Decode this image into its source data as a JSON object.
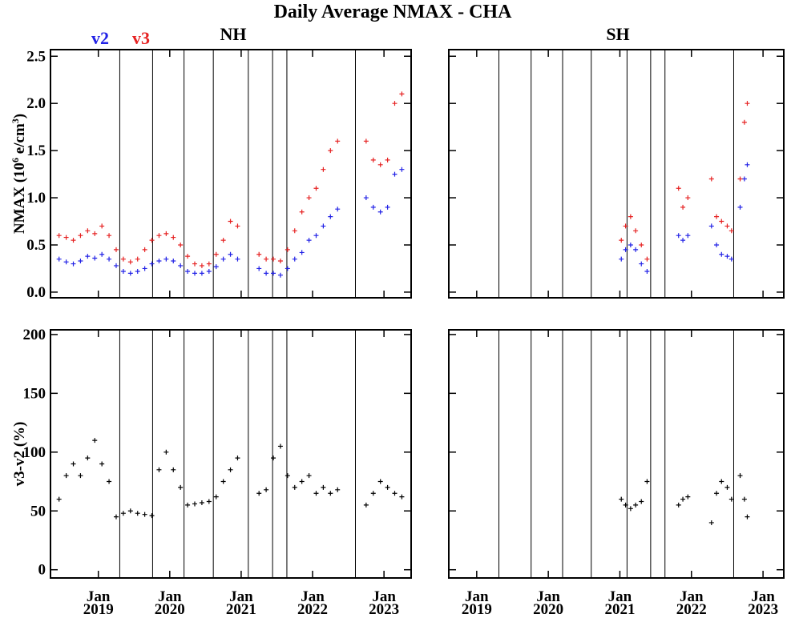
{
  "title": "Daily Average NMAX - CHA",
  "chart_data": [
    {
      "type": "scatter",
      "title": "NH",
      "ylabel": [
        "NMAX (10",
        "6",
        " e/cm",
        "3",
        ")"
      ],
      "x": [
        2018.45,
        2018.55,
        2018.65,
        2018.75,
        2018.85,
        2018.95,
        2019.05,
        2019.15,
        2019.25,
        2019.35,
        2019.45,
        2019.55,
        2019.65,
        2019.75,
        2019.85,
        2019.95,
        2020.05,
        2020.15,
        2020.25,
        2020.35,
        2020.45,
        2020.55,
        2020.65,
        2020.75,
        2020.85,
        2020.95,
        2021.25,
        2021.35,
        2021.45,
        2021.55,
        2021.65,
        2021.75,
        2021.85,
        2021.95,
        2022.05,
        2022.15,
        2022.25,
        2022.35,
        2022.75,
        2022.85,
        2022.95,
        2023.05,
        2023.15,
        2023.25
      ],
      "series": [
        {
          "name": "v2",
          "color": "#2222e6",
          "values": [
            0.35,
            0.32,
            0.3,
            0.33,
            0.38,
            0.36,
            0.4,
            0.35,
            0.28,
            0.22,
            0.2,
            0.22,
            0.25,
            0.3,
            0.33,
            0.35,
            0.33,
            0.28,
            0.22,
            0.2,
            0.2,
            0.22,
            0.27,
            0.35,
            0.4,
            0.35,
            0.25,
            0.2,
            0.2,
            0.18,
            0.25,
            0.35,
            0.42,
            0.55,
            0.6,
            0.7,
            0.8,
            0.88,
            1.0,
            0.9,
            0.85,
            0.9,
            1.25,
            1.3
          ]
        },
        {
          "name": "v3",
          "color": "#e62222",
          "values": [
            0.6,
            0.58,
            0.55,
            0.6,
            0.65,
            0.62,
            0.7,
            0.6,
            0.45,
            0.35,
            0.32,
            0.35,
            0.45,
            0.55,
            0.6,
            0.62,
            0.58,
            0.5,
            0.38,
            0.3,
            0.28,
            0.3,
            0.4,
            0.55,
            0.75,
            0.7,
            0.4,
            0.35,
            0.35,
            0.33,
            0.45,
            0.65,
            0.85,
            1.0,
            1.1,
            1.3,
            1.5,
            1.6,
            1.6,
            1.4,
            1.35,
            1.4,
            2.0,
            2.1
          ]
        }
      ],
      "xlim": [
        2018.33,
        2023.38
      ],
      "ylim": [
        -0.06,
        2.57
      ],
      "xticks": [
        2019,
        2020,
        2021,
        2022,
        2023
      ],
      "show_xtick_labels": false,
      "yticks": [
        {
          "value": 0,
          "label": "0.0"
        },
        0.5,
        {
          "value": 1,
          "label": "1.0"
        },
        1.5,
        {
          "value": 2,
          "label": "2.0"
        },
        2.5
      ],
      "show_ytick_labels": true,
      "vlines": [
        2019.3,
        2019.76,
        2020.2,
        2020.61,
        2021.1,
        2021.44,
        2021.64,
        2022.6
      ]
    },
    {
      "type": "scatter",
      "title": "SH",
      "x": [
        2021.02,
        2021.08,
        2021.15,
        2021.22,
        2021.3,
        2021.38,
        2021.82,
        2021.88,
        2021.95,
        2022.28,
        2022.35,
        2022.42,
        2022.5,
        2022.56,
        2022.68,
        2022.74,
        2022.78
      ],
      "series": [
        {
          "color": "#2222e6",
          "values": [
            0.35,
            0.45,
            0.5,
            0.45,
            0.3,
            0.22,
            0.6,
            0.55,
            0.6,
            0.7,
            0.5,
            0.4,
            0.38,
            0.35,
            0.9,
            1.2,
            1.35
          ]
        },
        {
          "color": "#e62222",
          "values": [
            0.55,
            0.7,
            0.8,
            0.65,
            0.5,
            0.35,
            1.1,
            0.9,
            1.0,
            1.2,
            0.8,
            0.75,
            0.7,
            0.65,
            1.2,
            1.8,
            2.0
          ]
        }
      ],
      "xlim": [
        2018.61,
        2023.29
      ],
      "ylim": [
        -0.06,
        2.57
      ],
      "xticks": [
        2019,
        2020,
        2021,
        2022,
        2023
      ],
      "show_xtick_labels": false,
      "yticks": [
        0,
        0.5,
        1,
        1.5,
        2,
        2.5
      ],
      "show_ytick_labels": false,
      "vlines": [
        2019.31,
        2019.76,
        2020.2,
        2020.6,
        2021.1,
        2021.43,
        2021.63,
        2022.59
      ]
    },
    {
      "type": "scatter",
      "ylabel": [
        "v3-v2 (%)"
      ],
      "x": [
        2018.45,
        2018.55,
        2018.65,
        2018.75,
        2018.85,
        2018.95,
        2019.05,
        2019.15,
        2019.25,
        2019.35,
        2019.45,
        2019.55,
        2019.65,
        2019.75,
        2019.85,
        2019.95,
        2020.05,
        2020.15,
        2020.25,
        2020.35,
        2020.45,
        2020.55,
        2020.65,
        2020.75,
        2020.85,
        2020.95,
        2021.25,
        2021.35,
        2021.45,
        2021.55,
        2021.65,
        2021.75,
        2021.85,
        2021.95,
        2022.05,
        2022.15,
        2022.25,
        2022.35,
        2022.75,
        2022.85,
        2022.95,
        2023.05,
        2023.15,
        2023.25
      ],
      "series": [
        {
          "color": "#000000",
          "values": [
            60,
            80,
            90,
            80,
            95,
            110,
            90,
            75,
            45,
            48,
            50,
            48,
            47,
            46,
            85,
            100,
            85,
            70,
            55,
            56,
            57,
            58,
            62,
            75,
            85,
            95,
            65,
            68,
            95,
            105,
            80,
            70,
            75,
            80,
            65,
            70,
            65,
            68,
            55,
            65,
            75,
            70,
            65,
            62
          ]
        }
      ],
      "xlim": [
        2018.33,
        2023.38
      ],
      "ylim": [
        -7,
        204
      ],
      "xticks": [
        {
          "value": 2019,
          "label": "Jan 2019"
        },
        {
          "value": 2020,
          "label": "Jan 2020"
        },
        {
          "value": 2021,
          "label": "Jan 2021"
        },
        {
          "value": 2022,
          "label": "Jan 2022"
        },
        {
          "value": 2023,
          "label": "Jan 2023"
        }
      ],
      "show_xtick_labels": true,
      "yticks": [
        0,
        50,
        100,
        150,
        200
      ],
      "show_ytick_labels": true,
      "vlines": [
        2019.3,
        2019.76,
        2020.2,
        2020.61,
        2021.1,
        2021.44,
        2021.64,
        2022.6
      ]
    },
    {
      "type": "scatter",
      "x": [
        2021.02,
        2021.08,
        2021.15,
        2021.22,
        2021.3,
        2021.38,
        2021.82,
        2021.88,
        2021.95,
        2022.28,
        2022.35,
        2022.42,
        2022.5,
        2022.56,
        2022.68,
        2022.74,
        2022.78
      ],
      "series": [
        {
          "color": "#000000",
          "values": [
            60,
            55,
            52,
            55,
            58,
            75,
            55,
            60,
            62,
            40,
            65,
            75,
            70,
            60,
            80,
            60,
            45
          ]
        }
      ],
      "xlim": [
        2018.61,
        2023.29
      ],
      "ylim": [
        -7,
        204
      ],
      "xticks": [
        {
          "value": 2019,
          "label": "Jan 2019"
        },
        {
          "value": 2020,
          "label": "Jan 2020"
        },
        {
          "value": 2021,
          "label": "Jan 2021"
        },
        {
          "value": 2022,
          "label": "Jan 2022"
        },
        {
          "value": 2023,
          "label": "Jan 2023"
        }
      ],
      "show_xtick_labels": true,
      "yticks": [
        0,
        50,
        100,
        150,
        200
      ],
      "show_ytick_labels": false,
      "vlines": [
        2019.31,
        2019.76,
        2020.2,
        2020.6,
        2021.1,
        2021.43,
        2021.63,
        2022.59
      ]
    }
  ]
}
